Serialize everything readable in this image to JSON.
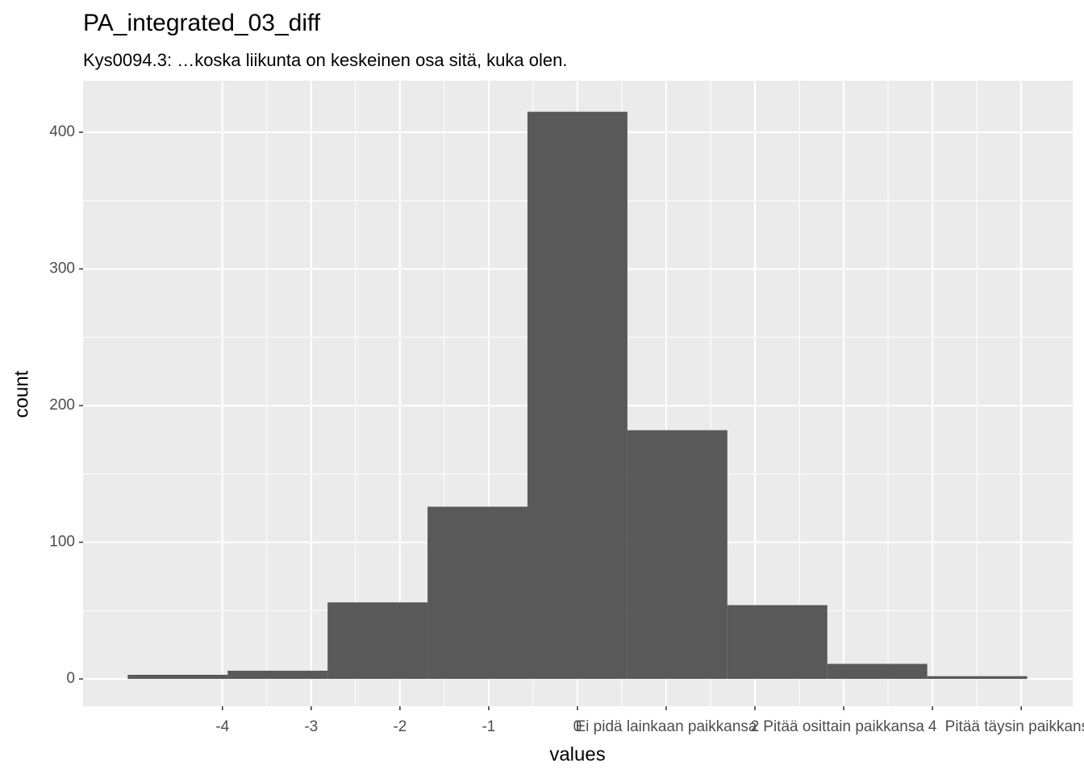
{
  "chart_data": {
    "type": "histogram",
    "title": "PA_integrated_03_diff",
    "subtitle": "Kys0094.3: …koska liikunta on keskeinen osa sitä, kuka olen.",
    "x_label": "values",
    "y_label": "count",
    "bins": [
      -5.067,
      -3.941,
      -2.815,
      -1.689,
      -0.563,
      0.563,
      1.689,
      2.815,
      3.941,
      5.067
    ],
    "values": [
      3,
      6,
      56,
      126,
      415,
      182,
      54,
      11,
      2
    ],
    "color": "#595959",
    "xlim": [
      -5.57,
      5.58
    ],
    "ylim": [
      -20,
      437.8
    ],
    "xticks": [
      -4,
      -3,
      -2,
      -1,
      0,
      {
        "value": 1,
        "label": "Ei pidä lainkaan paikkansa"
      },
      2,
      {
        "value": 3,
        "label": "Pitää osittain paikkansa"
      },
      4,
      {
        "value": 5,
        "label": "Pitää täysin paikkansa"
      }
    ],
    "yticks": [
      0,
      100,
      200,
      300,
      400
    ],
    "grid": true
  }
}
